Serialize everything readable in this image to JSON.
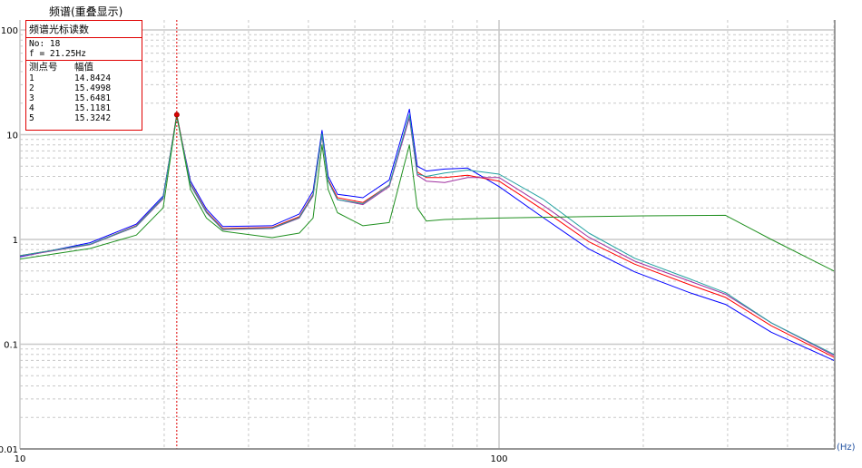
{
  "chart_data": {
    "type": "line",
    "title": "频谱(重叠显示)",
    "xlabel": "(Hz)",
    "ylabel": "",
    "xscale": "log",
    "yscale": "log",
    "xlim": [
      10,
      500
    ],
    "ylim": [
      0.01,
      125
    ],
    "x_tick_labels": [
      "10",
      "100"
    ],
    "y_tick_labels": [
      "100",
      "10",
      "1",
      "0.1",
      "0.01"
    ],
    "grid": true,
    "cursor": {
      "frequency": 21.25,
      "color": "#e00000"
    },
    "series": [
      {
        "color": "#0000ff",
        "points": [
          [
            10,
            0.68
          ],
          [
            14,
            0.93
          ],
          [
            17.5,
            1.4
          ],
          [
            19.9,
            2.6
          ],
          [
            21.25,
            14.84
          ],
          [
            22.7,
            3.6
          ],
          [
            24.5,
            1.95
          ],
          [
            26.5,
            1.33
          ],
          [
            33.6,
            1.35
          ],
          [
            38.3,
            1.75
          ],
          [
            40.9,
            2.9
          ],
          [
            42.7,
            11
          ],
          [
            44,
            4
          ],
          [
            46,
            2.7
          ],
          [
            52,
            2.5
          ],
          [
            59,
            3.7
          ],
          [
            65,
            17.5
          ],
          [
            67.5,
            5
          ],
          [
            70.5,
            4.5
          ],
          [
            77,
            4.7
          ],
          [
            86,
            4.8
          ],
          [
            100,
            3.2
          ],
          [
            124,
            1.6
          ],
          [
            154,
            0.81
          ],
          [
            192,
            0.49
          ],
          [
            250,
            0.31
          ],
          [
            297,
            0.24
          ],
          [
            370,
            0.13
          ],
          [
            500,
            0.07
          ]
        ]
      },
      {
        "color": "#ff0000",
        "points": [
          [
            10,
            0.7
          ],
          [
            14,
            0.9
          ],
          [
            17.5,
            1.35
          ],
          [
            19.9,
            2.5
          ],
          [
            21.25,
            15.4998
          ],
          [
            22.7,
            3.4
          ],
          [
            24.5,
            1.85
          ],
          [
            26.5,
            1.27
          ],
          [
            33.6,
            1.3
          ],
          [
            38.3,
            1.65
          ],
          [
            40.9,
            2.7
          ],
          [
            42.7,
            10
          ],
          [
            44,
            3.7
          ],
          [
            46,
            2.5
          ],
          [
            52,
            2.25
          ],
          [
            59,
            3.3
          ],
          [
            65,
            15
          ],
          [
            67.5,
            4.4
          ],
          [
            70.5,
            3.9
          ],
          [
            77,
            3.9
          ],
          [
            86,
            4.1
          ],
          [
            100,
            3.6
          ],
          [
            124,
            1.9
          ],
          [
            154,
            0.95
          ],
          [
            192,
            0.58
          ],
          [
            250,
            0.37
          ],
          [
            297,
            0.28
          ],
          [
            370,
            0.15
          ],
          [
            500,
            0.075
          ]
        ]
      },
      {
        "color": "#a030a0",
        "points": [
          [
            10,
            0.69
          ],
          [
            14,
            0.89
          ],
          [
            17.5,
            1.33
          ],
          [
            19.9,
            2.45
          ],
          [
            21.25,
            15.6481
          ],
          [
            22.7,
            3.3
          ],
          [
            24.5,
            1.8
          ],
          [
            26.5,
            1.24
          ],
          [
            33.6,
            1.27
          ],
          [
            38.3,
            1.6
          ],
          [
            40.9,
            2.6
          ],
          [
            42.7,
            9.8
          ],
          [
            44,
            3.6
          ],
          [
            46,
            2.4
          ],
          [
            52,
            2.15
          ],
          [
            59,
            3.2
          ],
          [
            65,
            14.5
          ],
          [
            67.5,
            4.1
          ],
          [
            70.5,
            3.6
          ],
          [
            77,
            3.5
          ],
          [
            86,
            3.9
          ],
          [
            100,
            3.9
          ],
          [
            124,
            2.1
          ],
          [
            154,
            1.05
          ],
          [
            192,
            0.62
          ],
          [
            250,
            0.4
          ],
          [
            297,
            0.3
          ],
          [
            370,
            0.16
          ],
          [
            500,
            0.078
          ]
        ]
      },
      {
        "color": "#20a0a0",
        "points": [
          [
            10,
            0.7
          ],
          [
            14,
            0.9
          ],
          [
            17.5,
            1.34
          ],
          [
            19.9,
            2.5
          ],
          [
            21.25,
            15.1181
          ],
          [
            22.7,
            3.35
          ],
          [
            24.5,
            1.82
          ],
          [
            26.5,
            1.25
          ],
          [
            33.6,
            1.28
          ],
          [
            38.3,
            1.62
          ],
          [
            40.9,
            2.65
          ],
          [
            42.7,
            10.2
          ],
          [
            44,
            3.6
          ],
          [
            46,
            2.4
          ],
          [
            52,
            2.2
          ],
          [
            59,
            3.3
          ],
          [
            65,
            15.5
          ],
          [
            67.5,
            4.2
          ],
          [
            70.5,
            4
          ],
          [
            77,
            4.3
          ],
          [
            86,
            4.6
          ],
          [
            100,
            4.2
          ],
          [
            124,
            2.4
          ],
          [
            154,
            1.15
          ],
          [
            192,
            0.66
          ],
          [
            250,
            0.42
          ],
          [
            297,
            0.31
          ],
          [
            370,
            0.16
          ],
          [
            500,
            0.08
          ]
        ]
      },
      {
        "color": "#209020",
        "points": [
          [
            10,
            0.65
          ],
          [
            14,
            0.82
          ],
          [
            17.5,
            1.1
          ],
          [
            19.9,
            2
          ],
          [
            21.25,
            15.3242
          ],
          [
            22.7,
            3
          ],
          [
            24.5,
            1.6
          ],
          [
            26.5,
            1.2
          ],
          [
            33.6,
            1.04
          ],
          [
            38.3,
            1.15
          ],
          [
            40.9,
            1.6
          ],
          [
            42.7,
            8
          ],
          [
            44,
            3
          ],
          [
            46,
            1.8
          ],
          [
            52,
            1.35
          ],
          [
            59,
            1.45
          ],
          [
            65,
            8
          ],
          [
            67.5,
            2
          ],
          [
            70.5,
            1.5
          ],
          [
            77,
            1.55
          ],
          [
            100,
            1.6
          ],
          [
            150,
            1.65
          ],
          [
            200,
            1.68
          ],
          [
            297,
            1.7
          ],
          [
            370,
            1
          ],
          [
            500,
            0.5
          ]
        ]
      }
    ]
  },
  "legend": {
    "title": "频谱光标读数",
    "no_label": "No: 18",
    "freq_label": "f = 21.25Hz",
    "col_point": "测点号",
    "col_value": "幅值",
    "rows": [
      {
        "point": "1",
        "value": "14.8424"
      },
      {
        "point": "2",
        "value": "15.4998"
      },
      {
        "point": "3",
        "value": "15.6481"
      },
      {
        "point": "4",
        "value": "15.1181"
      },
      {
        "point": "5",
        "value": "15.3242"
      }
    ]
  }
}
